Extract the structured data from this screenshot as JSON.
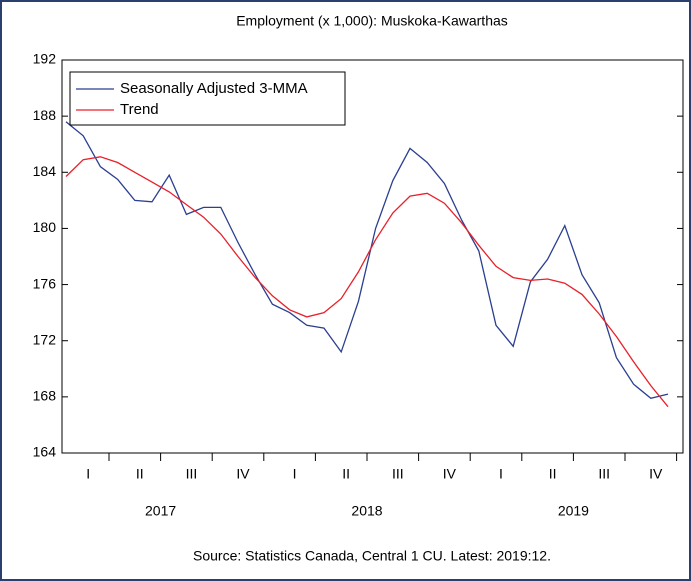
{
  "chart_data": {
    "type": "line",
    "title": "Employment (x 1,000): Muskoka-Kawarthas",
    "source": "Source: Statistics Canada, Central 1 CU. Latest: 2019:12.",
    "categories": [
      null,
      "I",
      null,
      null,
      "II",
      null,
      null,
      "III",
      null,
      null,
      "IV",
      null,
      null,
      "I",
      null,
      null,
      "II",
      null,
      null,
      "III",
      null,
      null,
      "IV",
      null,
      null,
      "I",
      null,
      null,
      "II",
      null,
      null,
      "III",
      null,
      null,
      "IV",
      null
    ],
    "year_labels": [
      "2017",
      "2018",
      "2019"
    ],
    "series": [
      {
        "name": "Seasonally Adjusted 3-MMA",
        "color": "#2b3f8f",
        "values": [
          187.6,
          186.6,
          184.4,
          183.5,
          182.0,
          181.9,
          183.8,
          181.0,
          181.5,
          181.5,
          179.0,
          176.7,
          174.6,
          174.0,
          173.1,
          172.9,
          171.2,
          174.8,
          180.0,
          183.4,
          185.7,
          184.7,
          183.2,
          180.6,
          178.4,
          173.1,
          171.6,
          176.2,
          177.8,
          180.2,
          176.7,
          174.7,
          170.8,
          168.9,
          167.9,
          168.2
        ]
      },
      {
        "name": "Trend",
        "color": "#e8202a",
        "values": [
          183.7,
          184.9,
          185.1,
          184.7,
          184.0,
          183.3,
          182.6,
          181.7,
          180.8,
          179.6,
          178.0,
          176.5,
          175.2,
          174.2,
          173.7,
          174.0,
          175.0,
          176.9,
          179.2,
          181.1,
          182.3,
          182.5,
          181.8,
          180.4,
          178.8,
          177.3,
          176.5,
          176.3,
          176.4,
          176.1,
          175.3,
          173.9,
          172.3,
          170.5,
          168.8,
          167.3
        ]
      }
    ],
    "ylim": [
      164,
      192
    ],
    "yticks": [
      164,
      168,
      172,
      176,
      180,
      184,
      188,
      192
    ],
    "legend": "top-left"
  }
}
